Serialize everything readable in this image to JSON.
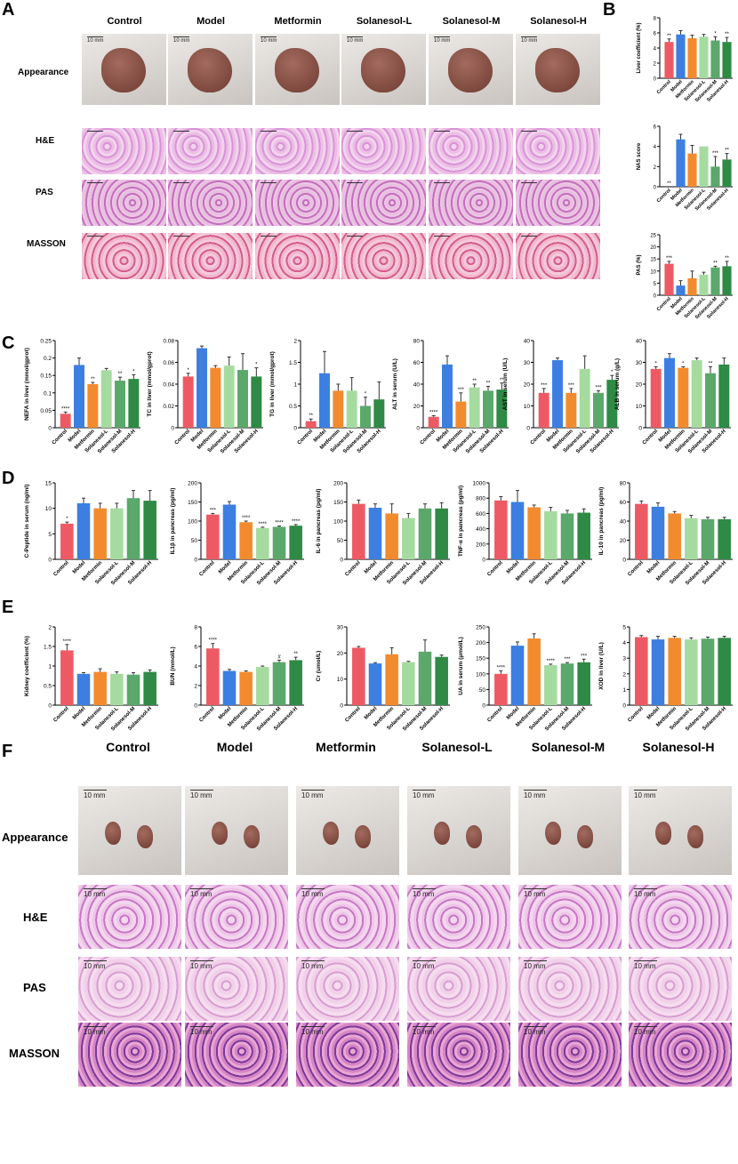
{
  "panels": {
    "A": "A",
    "B": "B",
    "C": "C",
    "D": "D",
    "E": "E",
    "F": "F"
  },
  "groups": [
    "Control",
    "Model",
    "Metformin",
    "Solanesol-L",
    "Solanesol-M",
    "Solanesol-H"
  ],
  "rows_liver": [
    "Appearance",
    "H&E",
    "PAS",
    "MASSON"
  ],
  "rows_kidney": [
    "Appearance",
    "H&E",
    "PAS",
    "MASSON"
  ],
  "scale_bar": "10 mm",
  "colors": {
    "Control": "#ee5a64",
    "Model": "#3c7fe0",
    "Metformin": "#f28b2e",
    "Solanesol-L": "#a6dba0",
    "Solanesol-M": "#5aa86a",
    "Solanesol-H": "#2e8a45"
  },
  "chart_data": [
    {
      "id": "B1",
      "type": "bar",
      "ylabel": "Liver coefficient (%)",
      "ylim": [
        0,
        8
      ],
      "yticks": [
        0,
        2,
        4,
        6,
        8
      ],
      "values": [
        4.8,
        5.8,
        5.3,
        5.5,
        5.0,
        4.8
      ],
      "errors": [
        0.4,
        0.5,
        0.4,
        0.3,
        0.5,
        0.6
      ],
      "sig": [
        "**",
        "",
        "",
        "",
        "*",
        "**"
      ]
    },
    {
      "id": "B2",
      "type": "bar",
      "ylabel": "NAS score",
      "ylim": [
        0,
        6
      ],
      "yticks": [
        0,
        2,
        4,
        6
      ],
      "values": [
        0,
        4.7,
        3.3,
        4.0,
        2.0,
        2.7
      ],
      "errors": [
        0,
        0.5,
        0.8,
        0,
        1.0,
        0.6
      ],
      "sig": [
        "**",
        "",
        "",
        "",
        "***",
        "**"
      ]
    },
    {
      "id": "B3",
      "type": "bar",
      "ylabel": "PAS (%)",
      "ylim": [
        0,
        25
      ],
      "yticks": [
        0,
        5,
        10,
        15,
        20,
        25
      ],
      "values": [
        13,
        4,
        7,
        8.5,
        11.5,
        12
      ],
      "errors": [
        1.0,
        2.0,
        3.0,
        1.0,
        0.5,
        2.0
      ],
      "sig": [
        "***",
        "",
        "",
        "",
        "**",
        "**"
      ]
    },
    {
      "id": "C1",
      "type": "bar",
      "ylabel": "NEFA in liver (mmol/gprot)",
      "ylim": [
        0,
        0.25
      ],
      "yticks": [
        0,
        0.05,
        0.1,
        0.15,
        0.2,
        0.25
      ],
      "values": [
        0.04,
        0.18,
        0.125,
        0.165,
        0.135,
        0.14
      ],
      "errors": [
        0.005,
        0.02,
        0.005,
        0.005,
        0.01,
        0.012
      ],
      "sig": [
        "****",
        "",
        "**",
        "",
        "**",
        "*"
      ]
    },
    {
      "id": "C2",
      "type": "bar",
      "ylabel": "TC in liver (mmol/gprot)",
      "ylim": [
        0,
        0.08
      ],
      "yticks": [
        0,
        0.02,
        0.04,
        0.06,
        0.08
      ],
      "values": [
        0.047,
        0.073,
        0.055,
        0.057,
        0.053,
        0.047
      ],
      "errors": [
        0.003,
        0.002,
        0.002,
        0.008,
        0.015,
        0.008
      ],
      "sig": [
        "*",
        "",
        "",
        "",
        "",
        "*"
      ]
    },
    {
      "id": "C3",
      "type": "bar",
      "ylabel": "TG in liver (mmol/gprot)",
      "ylim": [
        0,
        2.0
      ],
      "yticks": [
        0,
        0.5,
        1.0,
        1.5,
        2.0
      ],
      "values": [
        0.15,
        1.25,
        0.85,
        0.85,
        0.5,
        0.65
      ],
      "errors": [
        0.05,
        0.5,
        0.15,
        0.3,
        0.2,
        0.4
      ],
      "sig": [
        "**",
        "",
        "",
        "",
        "*",
        ""
      ]
    },
    {
      "id": "C4",
      "type": "bar",
      "ylabel": "ALT in serum (U/L)",
      "ylim": [
        0,
        80
      ],
      "yticks": [
        0,
        20,
        40,
        60,
        80
      ],
      "values": [
        10,
        58,
        24,
        37,
        34,
        35
      ],
      "errors": [
        1,
        8,
        8,
        3,
        4,
        6
      ],
      "sig": [
        "****",
        "",
        "***",
        "**",
        "**",
        "**"
      ]
    },
    {
      "id": "C5",
      "type": "bar",
      "ylabel": "AST in serum (U/L)",
      "ylim": [
        0,
        40
      ],
      "yticks": [
        0,
        10,
        20,
        30,
        40
      ],
      "values": [
        16,
        31,
        16,
        27,
        16,
        22
      ],
      "errors": [
        2,
        1,
        2,
        6,
        1,
        2
      ],
      "sig": [
        "***",
        "",
        "***",
        "",
        "***",
        "*"
      ]
    },
    {
      "id": "C6",
      "type": "bar",
      "ylabel": "ALB in serum (g/L)",
      "ylim": [
        0,
        40
      ],
      "yticks": [
        0,
        10,
        20,
        30,
        40
      ],
      "values": [
        27,
        32,
        27.5,
        31,
        25,
        29
      ],
      "errors": [
        1,
        2,
        0.5,
        1,
        3,
        3
      ],
      "sig": [
        "*",
        "",
        "*",
        "",
        "**",
        ""
      ]
    },
    {
      "id": "D1",
      "type": "bar",
      "ylabel": "C-Peptide in serum (ng/ml)",
      "ylim": [
        0,
        15
      ],
      "yticks": [
        0,
        5,
        10,
        15
      ],
      "values": [
        7,
        11,
        10,
        10,
        12,
        11.5
      ],
      "errors": [
        0.3,
        1,
        1,
        1,
        1.5,
        2
      ],
      "sig": [
        "*",
        "",
        "",
        "",
        "",
        ""
      ]
    },
    {
      "id": "D2",
      "type": "bar",
      "ylabel": "IL1β in pancreas (pg/ml)",
      "ylim": [
        0,
        200
      ],
      "yticks": [
        0,
        50,
        100,
        150,
        200
      ],
      "values": [
        117,
        143,
        97,
        82,
        85,
        88
      ],
      "errors": [
        3,
        8,
        3,
        2,
        2,
        3
      ],
      "sig": [
        "***",
        "",
        "****",
        "****",
        "****",
        "****"
      ]
    },
    {
      "id": "D3",
      "type": "bar",
      "ylabel": "IL-6 in pancreas (pg/ml)",
      "ylim": [
        0,
        200
      ],
      "yticks": [
        0,
        50,
        100,
        150,
        200
      ],
      "values": [
        145,
        135,
        120,
        108,
        133,
        133
      ],
      "errors": [
        10,
        10,
        25,
        12,
        12,
        15
      ],
      "sig": [
        "",
        "",
        "",
        "",
        "",
        ""
      ]
    },
    {
      "id": "D4",
      "type": "bar",
      "ylabel": "TNF-α in pancreas (pg/ml)",
      "ylim": [
        0,
        1000
      ],
      "yticks": [
        0,
        200,
        400,
        600,
        800,
        1000
      ],
      "values": [
        770,
        750,
        680,
        630,
        600,
        610
      ],
      "errors": [
        50,
        150,
        30,
        50,
        40,
        50
      ],
      "sig": [
        "",
        "",
        "",
        "",
        "",
        ""
      ]
    },
    {
      "id": "D5",
      "type": "bar",
      "ylabel": "IL-10 in pancreas (pg/ml)",
      "ylim": [
        0,
        80
      ],
      "yticks": [
        0,
        20,
        40,
        60,
        80
      ],
      "values": [
        58,
        55,
        48,
        43,
        42,
        42
      ],
      "errors": [
        3,
        4,
        2,
        3,
        2,
        2
      ],
      "sig": [
        "",
        "",
        "",
        "",
        "",
        ""
      ]
    },
    {
      "id": "E1",
      "type": "bar",
      "ylabel": "Kidney coefficient (%)",
      "ylim": [
        0,
        2.0
      ],
      "yticks": [
        0,
        0.5,
        1.0,
        1.5,
        2.0
      ],
      "values": [
        1.4,
        0.8,
        0.85,
        0.8,
        0.78,
        0.85
      ],
      "errors": [
        0.15,
        0.03,
        0.08,
        0.05,
        0.05,
        0.05
      ],
      "sig": [
        "****",
        "",
        "",
        "",
        "",
        ""
      ]
    },
    {
      "id": "E2",
      "type": "bar",
      "ylabel": "BUN (mmol/L)",
      "ylim": [
        0,
        8
      ],
      "yticks": [
        0,
        2,
        4,
        6,
        8
      ],
      "values": [
        5.8,
        3.5,
        3.4,
        3.9,
        4.4,
        4.6
      ],
      "errors": [
        0.5,
        0.15,
        0.1,
        0.1,
        0.2,
        0.3
      ],
      "sig": [
        "****",
        "",
        "",
        "",
        "#",
        "**"
      ]
    },
    {
      "id": "E3",
      "type": "bar",
      "ylabel": "Cr (umol/L)",
      "ylim": [
        0,
        30
      ],
      "yticks": [
        0,
        10,
        20,
        30
      ],
      "values": [
        22,
        16,
        19.5,
        16.5,
        20.5,
        18.5
      ],
      "errors": [
        0.5,
        0.3,
        2.5,
        0.3,
        4.5,
        0.7
      ],
      "sig": [
        "",
        "",
        "",
        "",
        "",
        ""
      ]
    },
    {
      "id": "E4",
      "type": "bar",
      "ylabel": "UA in serum (μmol/L)",
      "ylim": [
        0,
        250
      ],
      "yticks": [
        0,
        50,
        100,
        150,
        200,
        250
      ],
      "values": [
        100,
        190,
        213,
        128,
        133,
        137
      ],
      "errors": [
        10,
        12,
        15,
        3,
        3,
        10
      ],
      "sig": [
        "****",
        "",
        "",
        "****",
        "***",
        "***"
      ]
    },
    {
      "id": "E5",
      "type": "bar",
      "ylabel": "XOD in liver (U/L)",
      "ylim": [
        0,
        5
      ],
      "yticks": [
        0,
        1,
        2,
        3,
        4,
        5
      ],
      "values": [
        4.35,
        4.2,
        4.3,
        4.2,
        4.25,
        4.3
      ],
      "errors": [
        0.1,
        0.2,
        0.1,
        0.1,
        0.1,
        0.1
      ],
      "sig": [
        "",
        "",
        "",
        "",
        "",
        ""
      ]
    }
  ]
}
